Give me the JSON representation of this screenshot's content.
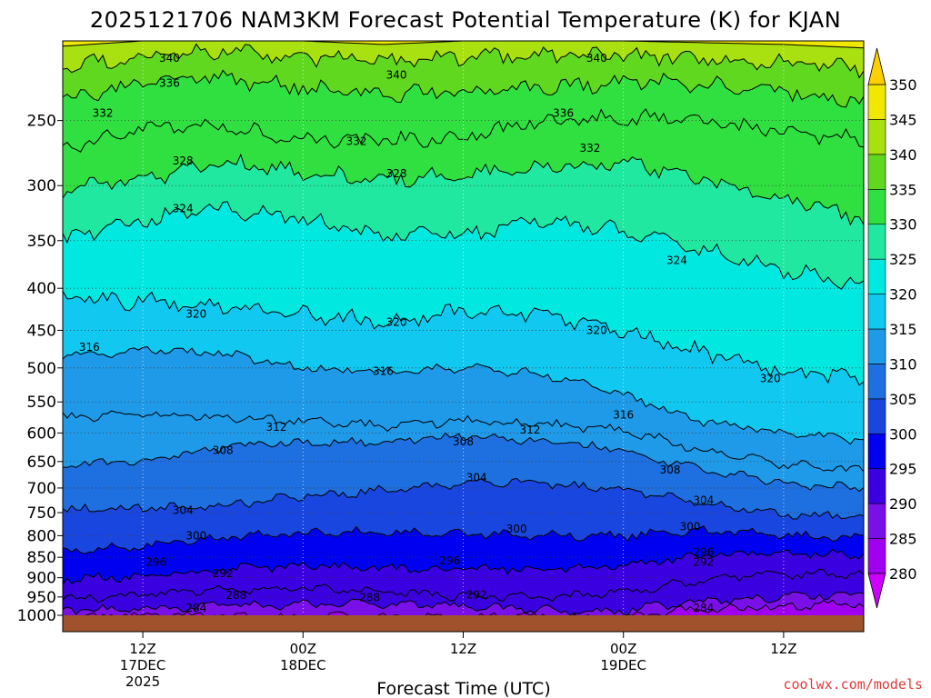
{
  "chart_data": {
    "type": "heatmap",
    "title": "2025121706 NAM3KM Forecast Potential Temperature (K) for KJAN",
    "xlabel": "Forecast Time (UTC)",
    "ylabel": "",
    "credit": "coolwx.com/models",
    "x_ticks": [
      {
        "label": "12Z",
        "sub1": "17DEC",
        "sub2": "2025",
        "hour": 6
      },
      {
        "label": "00Z",
        "sub1": "18DEC",
        "sub2": "",
        "hour": 18
      },
      {
        "label": "12Z",
        "sub1": "",
        "sub2": "",
        "hour": 30
      },
      {
        "label": "00Z",
        "sub1": "19DEC",
        "sub2": "",
        "hour": 42
      },
      {
        "label": "12Z",
        "sub1": "",
        "sub2": "",
        "hour": 54
      }
    ],
    "x_range_hours": [
      0,
      60
    ],
    "y_ticks": [
      250,
      300,
      350,
      400,
      450,
      500,
      550,
      600,
      650,
      700,
      750,
      800,
      850,
      900,
      950,
      1000
    ],
    "y_range_hpa": [
      200,
      1000
    ],
    "y_scale": "log",
    "colorbar": {
      "levels": [
        280,
        285,
        290,
        295,
        300,
        305,
        310,
        315,
        320,
        325,
        330,
        335,
        340,
        345,
        350
      ],
      "colors": [
        "#cc00ff",
        "#a000f0",
        "#7a10e8",
        "#3a00e0",
        "#0000f0",
        "#1a46e0",
        "#1e6fe0",
        "#1e9ae8",
        "#10c8f0",
        "#00e8e0",
        "#20e8a0",
        "#30e040",
        "#60d820",
        "#a8e010",
        "#f0e800",
        "#ffd000"
      ],
      "extend": "both"
    },
    "contour_interval_K": 4,
    "contour_labels": [
      {
        "value": "340",
        "hour": 8.0,
        "p": 210
      },
      {
        "value": "340",
        "hour": 25.0,
        "p": 220
      },
      {
        "value": "340",
        "hour": 40.0,
        "p": 210
      },
      {
        "value": "336",
        "hour": 8.0,
        "p": 225
      },
      {
        "value": "336",
        "hour": 37.5,
        "p": 245
      },
      {
        "value": "332",
        "hour": 3.0,
        "p": 245
      },
      {
        "value": "332",
        "hour": 22.0,
        "p": 265
      },
      {
        "value": "332",
        "hour": 39.5,
        "p": 270
      },
      {
        "value": "328",
        "hour": 9.0,
        "p": 280
      },
      {
        "value": "328",
        "hour": 25.0,
        "p": 290
      },
      {
        "value": "324",
        "hour": 9.0,
        "p": 320
      },
      {
        "value": "324",
        "hour": 46.0,
        "p": 370
      },
      {
        "value": "320",
        "hour": 10.0,
        "p": 430
      },
      {
        "value": "320",
        "hour": 25.0,
        "p": 440
      },
      {
        "value": "320",
        "hour": 40.0,
        "p": 450
      },
      {
        "value": "320",
        "hour": 53.0,
        "p": 515
      },
      {
        "value": "316",
        "hour": 2.0,
        "p": 472
      },
      {
        "value": "316",
        "hour": 24.0,
        "p": 505
      },
      {
        "value": "316",
        "hour": 42.0,
        "p": 570
      },
      {
        "value": "312",
        "hour": 16.0,
        "p": 590
      },
      {
        "value": "312",
        "hour": 35.0,
        "p": 595
      },
      {
        "value": "308",
        "hour": 12.0,
        "p": 630
      },
      {
        "value": "308",
        "hour": 30.0,
        "p": 615
      },
      {
        "value": "308",
        "hour": 45.5,
        "p": 665
      },
      {
        "value": "304",
        "hour": 9.0,
        "p": 745
      },
      {
        "value": "304",
        "hour": 31.0,
        "p": 680
      },
      {
        "value": "304",
        "hour": 48.0,
        "p": 725
      },
      {
        "value": "300",
        "hour": 10.0,
        "p": 800
      },
      {
        "value": "300",
        "hour": 34.0,
        "p": 785
      },
      {
        "value": "300",
        "hour": 47.0,
        "p": 780
      },
      {
        "value": "296",
        "hour": 7.0,
        "p": 862
      },
      {
        "value": "296",
        "hour": 29.0,
        "p": 858
      },
      {
        "value": "296",
        "hour": 48.0,
        "p": 838
      },
      {
        "value": "292",
        "hour": 12.0,
        "p": 890
      },
      {
        "value": "292",
        "hour": 31.0,
        "p": 944
      },
      {
        "value": "292",
        "hour": 48.0,
        "p": 862
      },
      {
        "value": "288",
        "hour": 13.0,
        "p": 945
      },
      {
        "value": "288",
        "hour": 23.0,
        "p": 952
      },
      {
        "value": "284",
        "hour": 10.0,
        "p": 980
      },
      {
        "value": "284",
        "hour": 48.0,
        "p": 980
      }
    ]
  }
}
